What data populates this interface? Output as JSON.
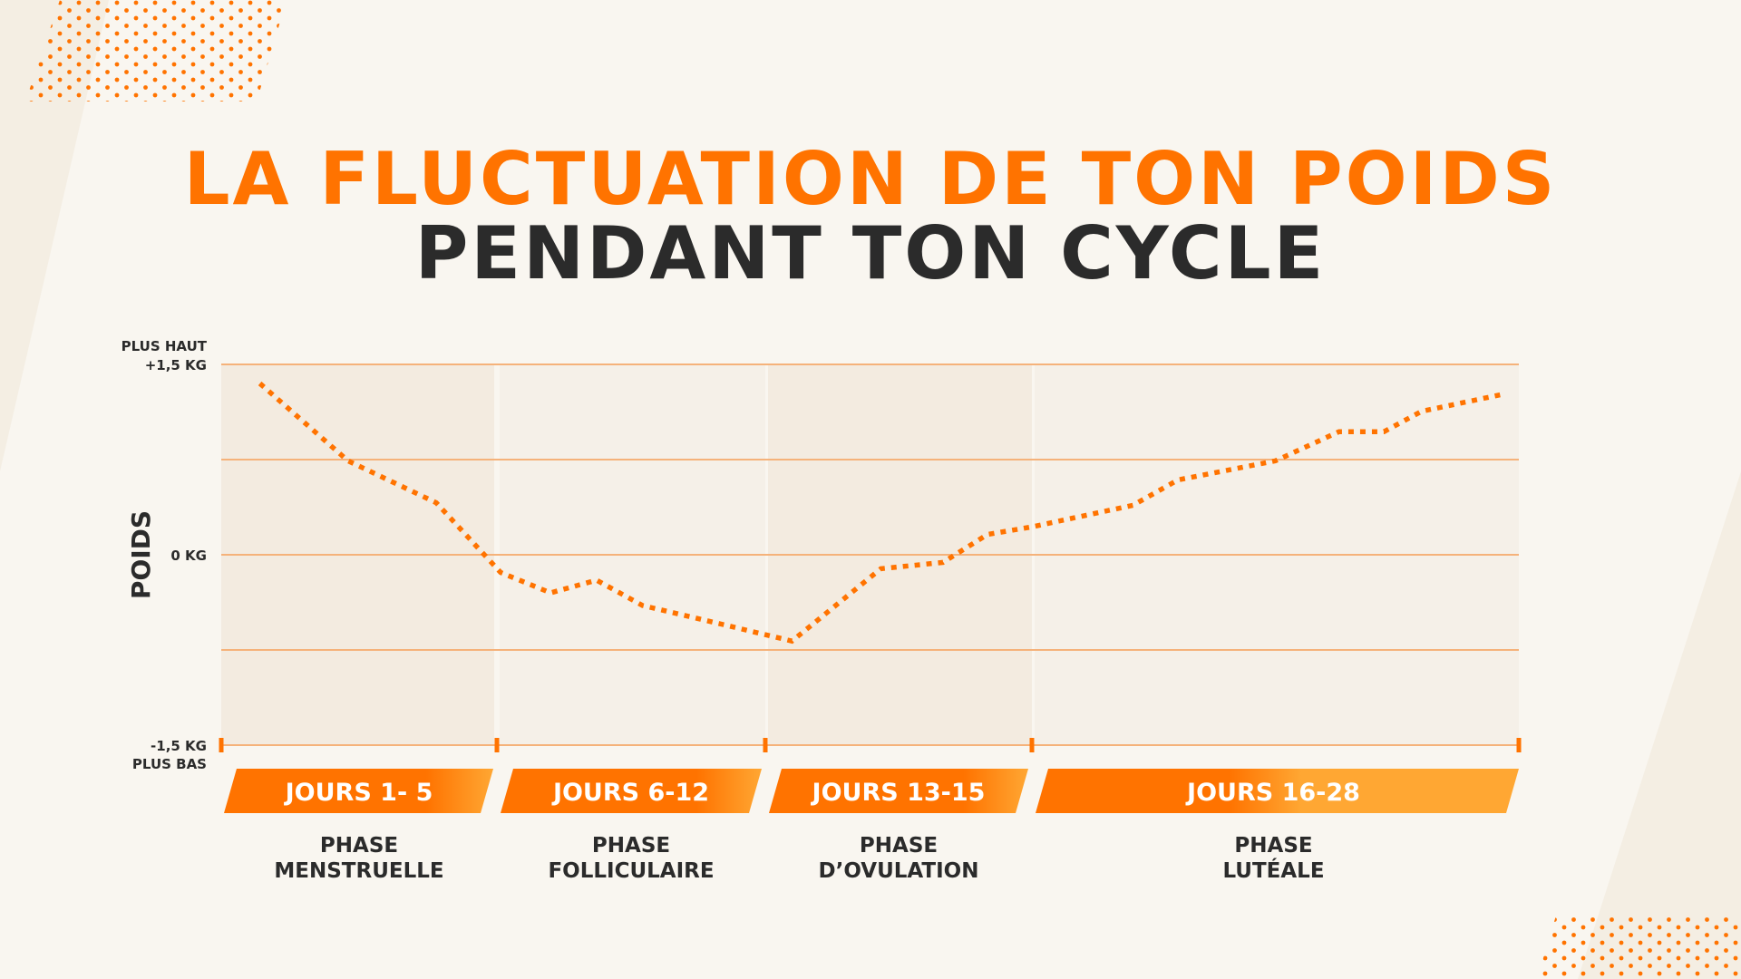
{
  "title_line1": "LA FLUCTUATION DE TON POIDS",
  "title_line2": "PENDANT TON CYCLE",
  "colors": {
    "accent": "#ff7300",
    "accent_light": "#ffa733",
    "text": "#2b2b2b",
    "grid": "#f5b27a",
    "background": "#f9f6f0"
  },
  "chart_data": {
    "type": "line",
    "line_style": "dotted",
    "ylabel": "POIDS",
    "ylim": [
      -1.5,
      1.5
    ],
    "y_ticks": [
      {
        "value": 1.5,
        "label": "+1,5 KG",
        "note": "PLUS HAUT"
      },
      {
        "value": 0,
        "label": "0 KG"
      },
      {
        "value": -1.5,
        "label": "-1,5 KG",
        "note": "PLUS BAS"
      }
    ],
    "gridlines_y": [
      1.5,
      0.75,
      0,
      -0.75,
      -1.5
    ],
    "xlim": [
      0,
      28
    ],
    "phases": [
      {
        "days_label": "JOURS 1- 5",
        "name_line1": "PHASE",
        "name_line2": "MENSTRUELLE",
        "start": 0,
        "end": 5
      },
      {
        "days_label": "JOURS 6-12",
        "name_line1": "PHASE",
        "name_line2": "FOLLICULAIRE",
        "start": 5,
        "end": 12
      },
      {
        "days_label": "JOURS 13-15",
        "name_line1": "PHASE",
        "name_line2": "D’OVULATION",
        "start": 12,
        "end": 15
      },
      {
        "days_label": "JOURS 16-28",
        "name_line1": "PHASE",
        "name_line2": "LUTÉALE",
        "start": 15,
        "end": 28
      }
    ],
    "x": [
      0.7,
      2.3,
      3.9,
      5.1,
      6.4,
      7.6,
      8.8,
      10.9,
      12.3,
      13.3,
      14.0,
      14.5,
      15.0,
      17.7,
      18.9,
      21.5,
      23.2,
      24.4,
      25.4,
      27.5
    ],
    "y": [
      1.35,
      0.74,
      0.41,
      -0.14,
      -0.3,
      -0.2,
      -0.4,
      -0.55,
      -0.68,
      -0.11,
      -0.06,
      0.16,
      0.22,
      0.39,
      0.59,
      0.74,
      0.97,
      0.97,
      1.13,
      1.26
    ]
  }
}
